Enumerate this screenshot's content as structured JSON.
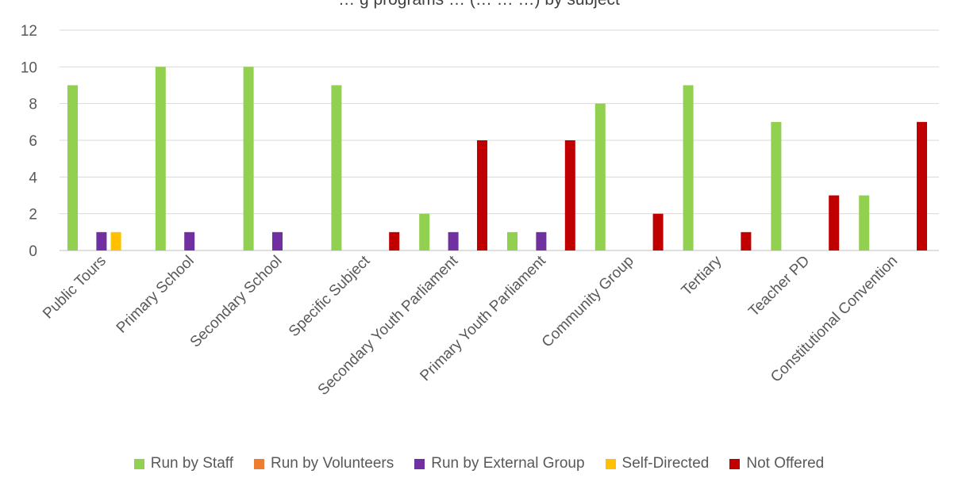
{
  "chart_data": {
    "type": "bar",
    "title": "… g programs … (… … …) by subject",
    "categories": [
      "Public Tours",
      "Primary School",
      "Secondary School",
      "Specific Subject",
      "Secondary Youth Parliament",
      "Primary Youth Parliament",
      "Community Group",
      "Tertiary",
      "Teacher PD",
      "Constitutional Convention"
    ],
    "series": [
      {
        "name": "Run by Staff",
        "color": "#92d050",
        "values": [
          9,
          10,
          10,
          9,
          2,
          1,
          8,
          9,
          7,
          3
        ]
      },
      {
        "name": "Run by Volunteers",
        "color": "#ed7d31",
        "values": [
          0,
          0,
          0,
          0,
          0,
          0,
          0,
          0,
          0,
          0
        ]
      },
      {
        "name": "Run by External Group",
        "color": "#7030a0",
        "values": [
          1,
          1,
          1,
          0,
          1,
          1,
          0,
          0,
          0,
          0
        ]
      },
      {
        "name": "Self-Directed",
        "color": "#ffc000",
        "values": [
          1,
          0,
          0,
          0,
          0,
          0,
          0,
          0,
          0,
          0
        ]
      },
      {
        "name": "Not Offered",
        "color": "#c00000",
        "values": [
          0,
          0,
          0,
          1,
          6,
          6,
          2,
          1,
          3,
          7
        ]
      }
    ],
    "yticks": [
      0,
      2,
      4,
      6,
      8,
      10,
      12
    ],
    "ylim": [
      0,
      12
    ],
    "grid": true,
    "legend": "bottom"
  }
}
